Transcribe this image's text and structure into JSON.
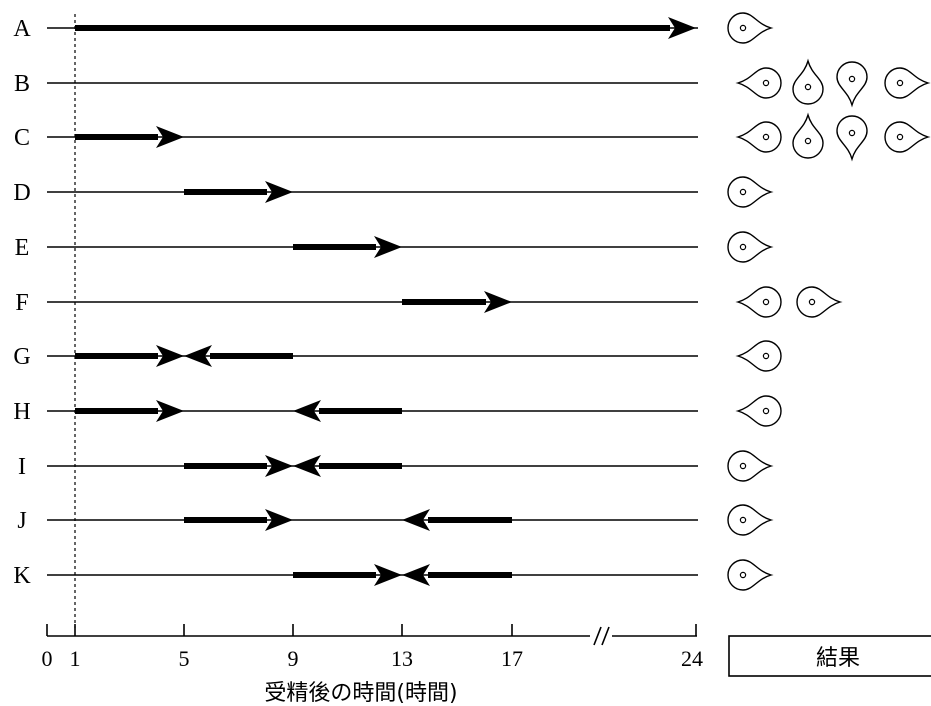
{
  "rows": [
    {
      "label": "A",
      "segments": [
        {
          "from": 1,
          "to": 24,
          "dir": "right"
        }
      ],
      "results": [
        "right"
      ]
    },
    {
      "label": "B",
      "segments": [],
      "results": [
        "left",
        "up",
        "down",
        "right"
      ]
    },
    {
      "label": "C",
      "segments": [
        {
          "from": 1,
          "to": 5,
          "dir": "right"
        }
      ],
      "results": [
        "left",
        "up",
        "down",
        "right"
      ]
    },
    {
      "label": "D",
      "segments": [
        {
          "from": 5,
          "to": 9,
          "dir": "right"
        }
      ],
      "results": [
        "right"
      ]
    },
    {
      "label": "E",
      "segments": [
        {
          "from": 9,
          "to": 13,
          "dir": "right"
        }
      ],
      "results": [
        "right"
      ]
    },
    {
      "label": "F",
      "segments": [
        {
          "from": 13,
          "to": 17,
          "dir": "right"
        }
      ],
      "results": [
        "left",
        "right"
      ]
    },
    {
      "label": "G",
      "segments": [
        {
          "from": 1,
          "to": 5,
          "dir": "right"
        },
        {
          "from": 9,
          "to": 5,
          "dir": "left"
        }
      ],
      "results": [
        "left"
      ]
    },
    {
      "label": "H",
      "segments": [
        {
          "from": 1,
          "to": 5,
          "dir": "right"
        },
        {
          "from": 13,
          "to": 9,
          "dir": "left"
        }
      ],
      "results": [
        "left"
      ]
    },
    {
      "label": "I",
      "segments": [
        {
          "from": 5,
          "to": 9,
          "dir": "right"
        },
        {
          "from": 13,
          "to": 9,
          "dir": "left"
        }
      ],
      "results": [
        "right"
      ]
    },
    {
      "label": "J",
      "segments": [
        {
          "from": 5,
          "to": 9,
          "dir": "right"
        },
        {
          "from": 17,
          "to": 13,
          "dir": "left"
        }
      ],
      "results": [
        "right"
      ]
    },
    {
      "label": "K",
      "segments": [
        {
          "from": 9,
          "to": 13,
          "dir": "right"
        },
        {
          "from": 17,
          "to": 13,
          "dir": "left"
        }
      ],
      "results": [
        "right"
      ]
    }
  ],
  "axis": {
    "ticks": [
      0,
      1,
      5,
      9,
      13,
      17,
      24
    ],
    "tick_labels": [
      "0",
      "1",
      "5",
      "9",
      "13",
      "17",
      "24"
    ],
    "title": "受精後の時間(時間)",
    "break_after": 17
  },
  "results_label": "結果"
}
